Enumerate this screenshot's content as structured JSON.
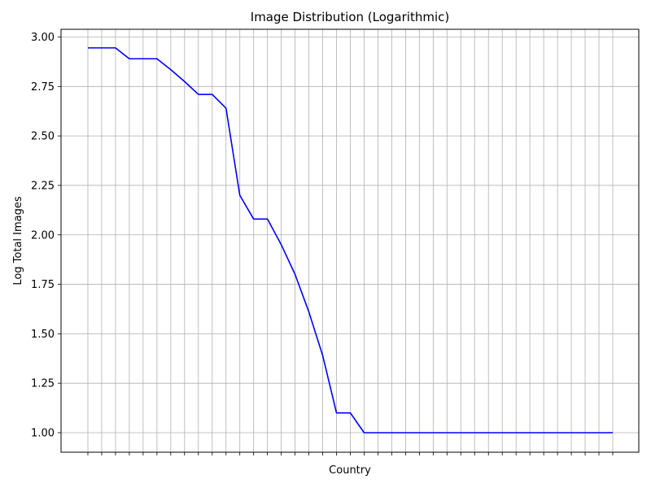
{
  "chart_data": {
    "type": "line",
    "title": "Image Distribution (Logarithmic)",
    "xlabel": "Country",
    "ylabel": "Log Total Images",
    "categories": [
      "",
      "",
      "",
      "",
      "",
      "",
      "",
      "",
      "",
      "",
      "",
      "",
      "",
      "",
      "",
      "",
      "",
      "",
      "",
      "",
      "",
      "",
      "",
      "",
      "",
      "",
      "",
      "",
      "",
      "",
      "",
      "",
      "",
      "",
      "",
      "",
      "",
      "",
      ""
    ],
    "series": [
      {
        "name": "",
        "color": "#0000ff",
        "values": [
          2.945,
          2.945,
          2.945,
          2.89,
          2.89,
          2.89,
          2.835,
          2.775,
          2.71,
          2.71,
          2.64,
          2.2,
          2.08,
          2.08,
          1.95,
          1.8,
          1.61,
          1.39,
          1.1,
          1.1,
          1.0,
          1.0,
          1.0,
          1.0,
          1.0,
          1.0,
          1.0,
          1.0,
          1.0,
          1.0,
          1.0,
          1.0,
          1.0,
          1.0,
          1.0,
          1.0,
          1.0,
          1.0,
          1.0
        ]
      }
    ],
    "ylim": [
      0.9,
      3.04
    ],
    "yticks": [
      "1.00",
      "1.25",
      "1.50",
      "1.75",
      "2.00",
      "2.25",
      "2.50",
      "2.75",
      "3.00"
    ],
    "grid": true,
    "legend": "none"
  }
}
